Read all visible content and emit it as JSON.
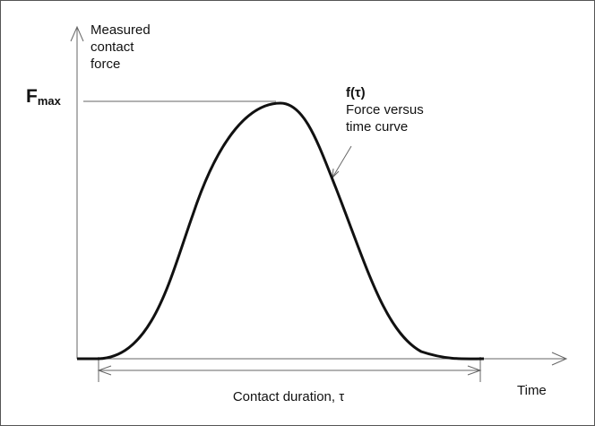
{
  "y_axis_label": [
    "Measured",
    "contact",
    "force"
  ],
  "peak_label": {
    "main": "F",
    "subscript": "max"
  },
  "curve_label": {
    "title": "f(τ)",
    "description": [
      "Force versus",
      "time curve"
    ]
  },
  "duration_label": "Contact duration, τ",
  "x_axis_label": "Time"
}
